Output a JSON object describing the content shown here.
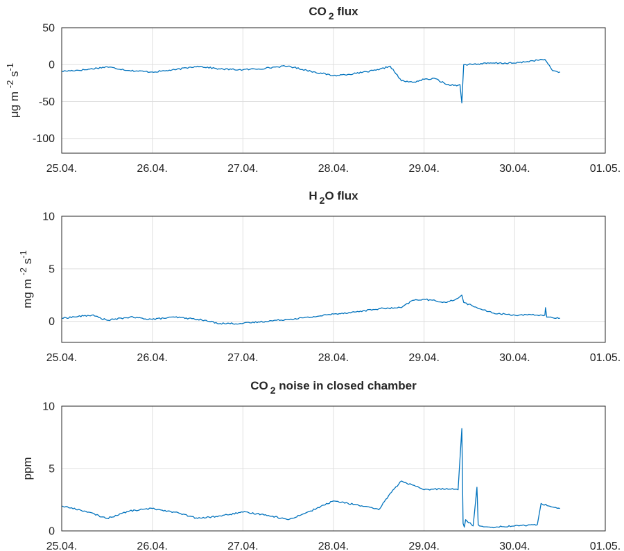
{
  "chart_data": [
    {
      "type": "line",
      "title": "CO<sub>2</sub> flux",
      "title_parts": {
        "pre": "CO",
        "sub": "2",
        "post": " flux"
      },
      "xlabel": "",
      "ylabel": "µg m-2 s-1",
      "ylabel_parts": {
        "p1": "μg m ",
        "sup1": "-2",
        "p2": " s",
        "sup2": "-1"
      },
      "xlim": [
        "25.04.",
        "01.05."
      ],
      "xtick_labels": [
        "25.04.",
        "26.04.",
        "27.04.",
        "28.04.",
        "29.04.",
        "30.04.",
        "01.05."
      ],
      "ylim": [
        -120,
        50
      ],
      "yticks": [
        50,
        0,
        -50,
        -100
      ],
      "ytick_labels": [
        "50",
        "0",
        "-50",
        "-100"
      ],
      "grid": true,
      "series_color": "#0072bd",
      "series": [
        {
          "x": [
            "25.04. 00:00",
            "25.04. 06:00",
            "25.04. 12:00",
            "25.04. 18:00",
            "26.04. 00:00",
            "26.04. 06:00",
            "26.04. 12:00",
            "26.04. 18:00",
            "27.04. 00:00",
            "27.04. 06:00",
            "27.04. 09:00",
            "27.04. 12:00",
            "27.04. 18:00",
            "28.04. 00:00",
            "28.04. 06:00",
            "28.04. 12:00",
            "28.04. 15:00",
            "28.04. 18:00",
            "28.04. 21:00",
            "29.04. 00:00",
            "29.04. 03:00",
            "29.04. 06:00",
            "29.04. 09:00",
            "29.04. 09:30",
            "29.04. 10:00",
            "29.04. 10:30",
            "29.04. 11:00",
            "29.04. 18:00",
            "30.04. 00:00",
            "30.04. 06:00",
            "30.04. 08:00",
            "30.04. 10:00",
            "30.04. 12:00"
          ],
          "values": [
            -9,
            -7,
            -3,
            -8,
            -10,
            -7,
            -2,
            -6,
            -7,
            -5,
            -3,
            -2,
            -9,
            -15,
            -12,
            -7,
            -2,
            -22,
            -24,
            -20,
            -19,
            -27,
            -28,
            -27,
            -52,
            0,
            0,
            2,
            2,
            6,
            7,
            -8,
            -10
          ]
        }
      ]
    },
    {
      "type": "line",
      "title": "H<sub>2</sub>O flux",
      "title_parts": {
        "pre": "H",
        "sub": "2",
        "post": "O flux"
      },
      "xlabel": "",
      "ylabel": "mg m-2 s-1",
      "ylabel_parts": {
        "p1": "mg m ",
        "sup1": "-2",
        "p2": " s",
        "sup2": "-1"
      },
      "xlim": [
        "25.04.",
        "01.05."
      ],
      "xtick_labels": [
        "25.04.",
        "26.04.",
        "27.04.",
        "28.04.",
        "29.04.",
        "30.04.",
        "01.05."
      ],
      "ylim": [
        -2,
        10
      ],
      "yticks": [
        10,
        5,
        0
      ],
      "ytick_labels": [
        "10",
        "5",
        "0"
      ],
      "grid": true,
      "series_color": "#0072bd",
      "series": [
        {
          "x": [
            "25.04. 00:00",
            "25.04. 08:00",
            "25.04. 12:00",
            "25.04. 18:00",
            "26.04. 00:00",
            "26.04. 06:00",
            "26.04. 12:00",
            "26.04. 18:00",
            "27.04. 00:00",
            "27.04. 06:00",
            "27.04. 12:00",
            "27.04. 18:00",
            "28.04. 00:00",
            "28.04. 06:00",
            "28.04. 12:00",
            "28.04. 18:00",
            "28.04. 21:00",
            "29.04. 00:00",
            "29.04. 06:00",
            "29.04. 09:00",
            "29.04. 10:00",
            "29.04. 10:30",
            "29.04. 14:00",
            "29.04. 18:00",
            "30.04. 00:00",
            "30.04. 06:00",
            "30.04. 08:00",
            "30.04. 08:10",
            "30.04. 08:30",
            "30.04. 12:00"
          ],
          "values": [
            0.3,
            0.6,
            0.1,
            0.4,
            0.2,
            0.4,
            0.2,
            -0.2,
            -0.2,
            0.0,
            0.2,
            0.4,
            0.7,
            0.9,
            1.2,
            1.3,
            2.0,
            2.1,
            1.8,
            2.2,
            2.5,
            1.8,
            1.3,
            0.8,
            0.6,
            0.6,
            0.6,
            1.3,
            0.4,
            0.3
          ]
        }
      ]
    },
    {
      "type": "line",
      "title": "CO<sub>2</sub> noise in closed chamber",
      "title_parts": {
        "pre": "CO",
        "sub": "2",
        "post": " noise in closed chamber"
      },
      "xlabel": "",
      "ylabel": "ppm",
      "xlim": [
        "25.04.",
        "01.05."
      ],
      "xtick_labels": [
        "25.04.",
        "26.04.",
        "27.04.",
        "28.04.",
        "29.04.",
        "30.04.",
        "01.05."
      ],
      "ylim": [
        0,
        10
      ],
      "yticks": [
        10,
        5,
        0
      ],
      "ytick_labels": [
        "10",
        "5",
        "0"
      ],
      "grid": true,
      "series_color": "#0072bd",
      "series": [
        {
          "x": [
            "25.04. 00:00",
            "25.04. 06:00",
            "25.04. 12:00",
            "25.04. 18:00",
            "26.04. 00:00",
            "26.04. 06:00",
            "26.04. 12:00",
            "26.04. 18:00",
            "27.04. 00:00",
            "27.04. 06:00",
            "27.04. 12:00",
            "27.04. 18:00",
            "28.04. 00:00",
            "28.04. 06:00",
            "28.04. 12:00",
            "28.04. 15:00",
            "28.04. 18:00",
            "29.04. 00:00",
            "29.04. 06:00",
            "29.04. 09:00",
            "29.04. 10:00",
            "29.04. 10:20",
            "29.04. 10:40",
            "29.04. 11:00",
            "29.04. 13:00",
            "29.04. 14:00",
            "29.04. 14:20",
            "29.04. 14:40",
            "29.04. 18:00",
            "30.04. 00:00",
            "30.04. 06:00",
            "30.04. 07:00",
            "30.04. 09:00",
            "30.04. 12:00"
          ],
          "values": [
            2.0,
            1.6,
            1.0,
            1.6,
            1.8,
            1.5,
            1.0,
            1.2,
            1.5,
            1.3,
            0.9,
            1.6,
            2.4,
            2.1,
            1.7,
            3.0,
            4.0,
            3.3,
            3.4,
            3.3,
            8.2,
            0.6,
            0.3,
            0.9,
            0.4,
            3.5,
            0.5,
            0.4,
            0.3,
            0.4,
            0.5,
            2.2,
            2.0,
            1.8
          ]
        }
      ]
    }
  ]
}
